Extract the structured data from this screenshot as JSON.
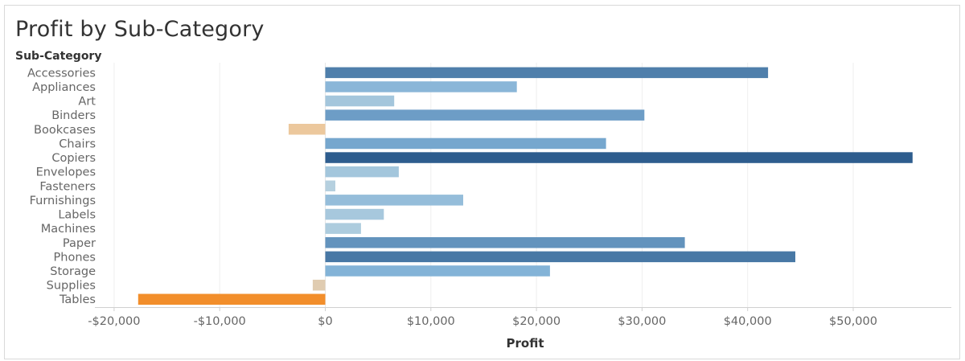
{
  "chart_data": {
    "type": "bar",
    "orientation": "horizontal",
    "title": "Profit by Sub-Category",
    "ylabel": "Sub-Category",
    "xlabel": "Profit",
    "categories": [
      "Accessories",
      "Appliances",
      "Art",
      "Binders",
      "Bookcases",
      "Chairs",
      "Copiers",
      "Envelopes",
      "Fasteners",
      "Furnishings",
      "Labels",
      "Machines",
      "Paper",
      "Phones",
      "Storage",
      "Supplies",
      "Tables"
    ],
    "values": [
      41937,
      18138,
      6528,
      30222,
      -3473,
      26590,
      55618,
      6964,
      950,
      13059,
      5546,
      3385,
      34054,
      44516,
      21279,
      -1189,
      -17725
    ],
    "xlim": [
      -22000,
      59300
    ],
    "xticks": [
      -20000,
      -10000,
      0,
      10000,
      20000,
      30000,
      40000,
      50000
    ],
    "xtick_labels": [
      "-$20,000",
      "-$10,000",
      "$0",
      "$10,000",
      "$20,000",
      "$30,000",
      "$40,000",
      "$50,000"
    ],
    "color_encoding": "diverging orange-blue by profit",
    "colors": {
      "negative_strong": "#f28e2b",
      "neutral": "#d4d1c5",
      "positive_strong": "#2e5d8e"
    },
    "grid": "vertical",
    "legend": "none"
  }
}
